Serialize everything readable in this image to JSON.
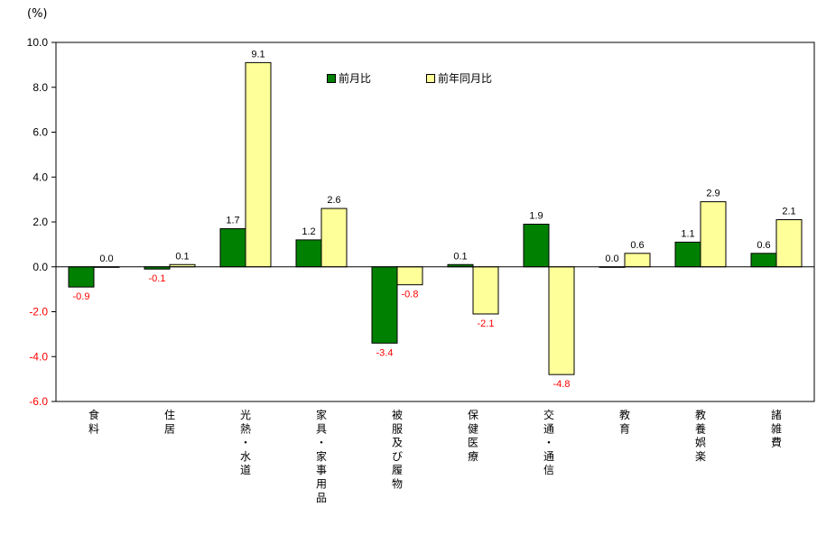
{
  "chart_data": {
    "type": "bar",
    "unit_label": "(%)",
    "categories": [
      "食料",
      "住居",
      "光熱・水道",
      "家具・家事用品",
      "被服及び履物",
      "保健医療",
      "交通・通信",
      "教育",
      "教養娯楽",
      "諸雑費"
    ],
    "series": [
      {
        "name": "前月比",
        "color": "#008000",
        "values": [
          -0.9,
          -0.1,
          1.7,
          1.2,
          -3.4,
          0.1,
          1.9,
          0.0,
          1.1,
          0.6
        ],
        "labels": [
          "-0.9",
          "-0.1",
          "1.7",
          "1.2",
          "-3.4",
          "0.1",
          "1.9",
          "0.0",
          "1.1",
          "0.6"
        ]
      },
      {
        "name": "前年同月比",
        "color": "#ffff99",
        "values": [
          0.0,
          0.1,
          9.1,
          2.6,
          -0.8,
          -2.1,
          -4.8,
          0.6,
          2.9,
          2.1
        ],
        "labels": [
          "0.0",
          "0.1",
          "9.1",
          "2.6",
          "-0.8",
          "-2.1",
          "-4.8",
          "0.6",
          "2.9",
          "2.1"
        ]
      }
    ],
    "ylim": [
      -6.0,
      10.0
    ],
    "yticks": [
      10.0,
      8.0,
      6.0,
      4.0,
      2.0,
      0.0,
      -2.0,
      -4.0,
      -6.0
    ],
    "ytick_labels": [
      "10.0",
      "8.0",
      "6.0",
      "4.0",
      "2.0",
      "0.0",
      "-2.0",
      "-4.0",
      "-6.0"
    ],
    "negative_label_color": "#ff0000",
    "grid": false,
    "legend_position": "top-center"
  }
}
